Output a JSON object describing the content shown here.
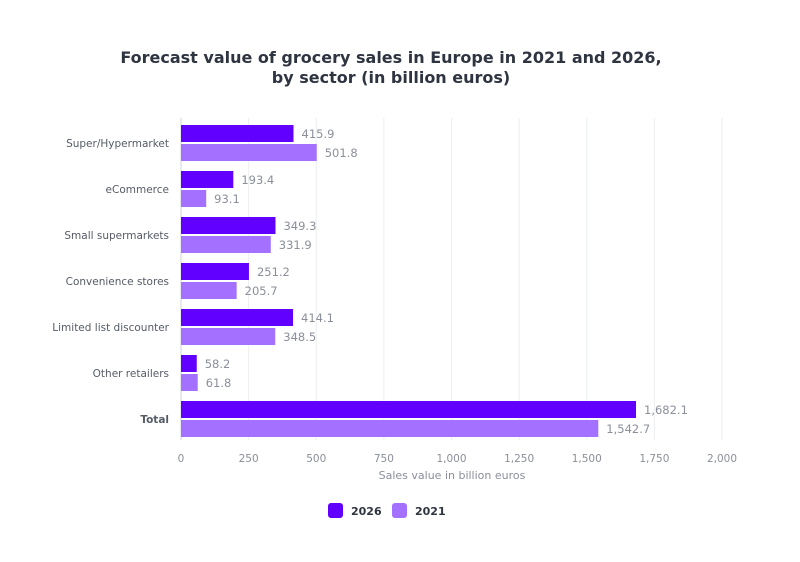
{
  "chart_data": {
    "type": "bar",
    "orientation": "horizontal",
    "title": "Forecast value of grocery sales in Europe in 2021 and 2026, by sector (in billion euros)",
    "title_lines": [
      "Forecast value of grocery sales in Europe in 2021 and 2026,",
      "by sector (in billion euros)"
    ],
    "categories": [
      "Super/Hypermarket",
      "eCommerce",
      "Small supermarkets",
      "Convenience stores",
      "Limited list discounter",
      "Other retailers",
      "Total"
    ],
    "bold_categories": [
      "Total"
    ],
    "series": [
      {
        "name": "2026",
        "color": "#6200ff",
        "values": [
          415.9,
          193.4,
          349.3,
          251.2,
          414.1,
          58.2,
          1682.1
        ],
        "labels": [
          "415.9",
          "193.4",
          "349.3",
          "251.2",
          "414.1",
          "58.2",
          "1,682.1"
        ]
      },
      {
        "name": "2021",
        "color": "#a370ff",
        "values": [
          501.8,
          93.1,
          331.9,
          205.7,
          348.5,
          61.8,
          1542.7
        ],
        "labels": [
          "501.8",
          "93.1",
          "331.9",
          "205.7",
          "348.5",
          "61.8",
          "1,542.7"
        ]
      }
    ],
    "xlabel": "Sales value in billion euros",
    "ylabel": "",
    "xlim": [
      0,
      2000
    ],
    "xticks": [
      0,
      250,
      500,
      750,
      1000,
      1250,
      1500,
      1750,
      2000
    ],
    "xtick_labels": [
      "0",
      "250",
      "500",
      "750",
      "1,000",
      "1,250",
      "1,500",
      "1,750",
      "2,000"
    ],
    "grid": true,
    "legend_position": "bottom"
  }
}
